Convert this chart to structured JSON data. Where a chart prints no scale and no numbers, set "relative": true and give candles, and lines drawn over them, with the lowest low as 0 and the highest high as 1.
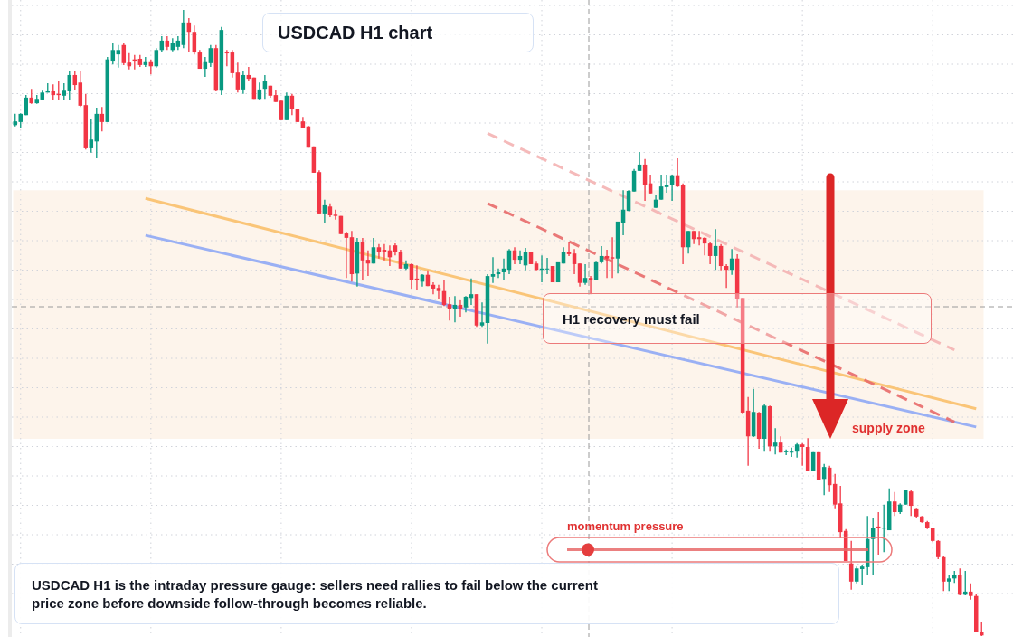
{
  "chart_data": {
    "type": "candlestick",
    "title": "USDCAD H1 chart",
    "relative": true,
    "grid": true,
    "categories": [
      null,
      null,
      null,
      null,
      null,
      null,
      null,
      null,
      null,
      null,
      null,
      null,
      null,
      null,
      null,
      null,
      null,
      null,
      null,
      null,
      null,
      null,
      null,
      null,
      null,
      null,
      null,
      null,
      null,
      null,
      null,
      null,
      null,
      null,
      null,
      null,
      null,
      null,
      null,
      null,
      null,
      null,
      null,
      null,
      null,
      null,
      null,
      null,
      null,
      null,
      null,
      null,
      null,
      null,
      null,
      null,
      null,
      null,
      null,
      null,
      null,
      null,
      null,
      null,
      null,
      null,
      null,
      null,
      null,
      null,
      null,
      null,
      null,
      null,
      null,
      null,
      null,
      null,
      null,
      null,
      null,
      null,
      null,
      null,
      null,
      null,
      null,
      null,
      null,
      null,
      null,
      null,
      null,
      null,
      null,
      null,
      null,
      null,
      null,
      null,
      null,
      null,
      null,
      null,
      null,
      null,
      null,
      null,
      null,
      null,
      null,
      null,
      null,
      null,
      null,
      null,
      null,
      null,
      null,
      null,
      null,
      null,
      null,
      null,
      null,
      null,
      null,
      null,
      null,
      null,
      null,
      null,
      null,
      null,
      null,
      null,
      null,
      null,
      null,
      null,
      null,
      null,
      null,
      null,
      null,
      null,
      null,
      null,
      null,
      null,
      null,
      null,
      null,
      null,
      null,
      null,
      null,
      null,
      null,
      null,
      null,
      null,
      null,
      null,
      null,
      null,
      null,
      null,
      null,
      null,
      null,
      null,
      null,
      null,
      null,
      null,
      null,
      null,
      null
    ],
    "ohlc": [
      [
        0.816,
        0.834,
        0.814,
        0.822
      ],
      [
        0.821,
        0.835,
        0.812,
        0.834
      ],
      [
        0.832,
        0.864,
        0.832,
        0.86
      ],
      [
        0.86,
        0.874,
        0.85,
        0.851
      ],
      [
        0.851,
        0.864,
        0.85,
        0.858
      ],
      [
        0.857,
        0.871,
        0.857,
        0.868
      ],
      [
        0.868,
        0.883,
        0.868,
        0.87
      ],
      [
        0.87,
        0.881,
        0.857,
        0.864
      ],
      [
        0.866,
        0.886,
        0.857,
        0.864
      ],
      [
        0.863,
        0.883,
        0.857,
        0.871
      ],
      [
        0.87,
        0.903,
        0.857,
        0.896
      ],
      [
        0.896,
        0.903,
        0.873,
        0.88
      ],
      [
        0.884,
        0.902,
        0.845,
        0.847
      ],
      [
        0.848,
        0.866,
        0.777,
        0.779
      ],
      [
        0.779,
        0.825,
        0.772,
        0.793
      ],
      [
        0.79,
        0.844,
        0.763,
        0.834
      ],
      [
        0.834,
        0.845,
        0.806,
        0.821
      ],
      [
        0.821,
        0.925,
        0.821,
        0.921
      ],
      [
        0.919,
        0.947,
        0.913,
        0.936
      ],
      [
        0.929,
        0.944,
        0.908,
        0.936
      ],
      [
        0.944,
        0.948,
        0.912,
        0.915
      ],
      [
        0.916,
        0.931,
        0.905,
        0.91
      ],
      [
        0.921,
        0.928,
        0.905,
        0.919
      ],
      [
        0.922,
        0.928,
        0.909,
        0.912
      ],
      [
        0.912,
        0.925,
        0.909,
        0.918
      ],
      [
        0.918,
        0.921,
        0.897,
        0.91
      ],
      [
        0.91,
        0.939,
        0.908,
        0.936
      ],
      [
        0.936,
        0.958,
        0.932,
        0.951
      ],
      [
        0.951,
        0.958,
        0.936,
        0.941
      ],
      [
        0.936,
        0.955,
        0.934,
        0.947
      ],
      [
        0.941,
        0.958,
        0.936,
        0.951
      ],
      [
        0.944,
        1.0,
        0.939,
        0.98
      ],
      [
        0.98,
        0.987,
        0.932,
        0.965
      ],
      [
        0.965,
        0.975,
        0.929,
        0.932
      ],
      [
        0.932,
        0.936,
        0.906,
        0.906
      ],
      [
        0.906,
        0.925,
        0.893,
        0.918
      ],
      [
        0.915,
        0.944,
        0.909,
        0.939
      ],
      [
        0.939,
        0.944,
        0.87,
        0.871
      ],
      [
        0.871,
        0.973,
        0.864,
        0.968
      ],
      [
        0.932,
        0.936,
        0.91,
        0.931
      ],
      [
        0.932,
        0.936,
        0.892,
        0.899
      ],
      [
        0.9,
        0.916,
        0.868,
        0.873
      ],
      [
        0.873,
        0.902,
        0.866,
        0.896
      ],
      [
        0.896,
        0.909,
        0.887,
        0.89
      ],
      [
        0.892,
        0.892,
        0.858,
        0.858
      ],
      [
        0.858,
        0.884,
        0.857,
        0.873
      ],
      [
        0.874,
        0.896,
        0.858,
        0.887
      ],
      [
        0.879,
        0.879,
        0.86,
        0.863
      ],
      [
        0.864,
        0.873,
        0.853,
        0.853
      ],
      [
        0.855,
        0.855,
        0.824,
        0.824
      ],
      [
        0.824,
        0.868,
        0.824,
        0.863
      ],
      [
        0.863,
        0.866,
        0.832,
        0.841
      ],
      [
        0.842,
        0.842,
        0.821,
        0.821
      ],
      [
        0.822,
        0.829,
        0.811,
        0.812
      ],
      [
        0.814,
        0.815,
        0.78,
        0.78
      ],
      [
        0.782,
        0.782,
        0.74,
        0.74
      ],
      [
        0.741,
        0.744,
        0.675,
        0.675
      ],
      [
        0.675,
        0.697,
        0.66,
        0.688
      ],
      [
        0.686,
        0.691,
        0.669,
        0.672
      ],
      [
        0.673,
        0.681,
        0.665,
        0.671
      ],
      [
        0.671,
        0.671,
        0.642,
        0.642
      ],
      [
        0.643,
        0.646,
        0.572,
        0.636
      ],
      [
        0.637,
        0.647,
        0.566,
        0.578
      ],
      [
        0.579,
        0.636,
        0.558,
        0.629
      ],
      [
        0.629,
        0.636,
        0.568,
        0.6
      ],
      [
        0.601,
        0.616,
        0.575,
        0.595
      ],
      [
        0.595,
        0.636,
        0.595,
        0.621
      ],
      [
        0.621,
        0.626,
        0.603,
        0.614
      ],
      [
        0.617,
        0.626,
        0.6,
        0.614
      ],
      [
        0.616,
        0.624,
        0.591,
        0.605
      ],
      [
        0.624,
        0.627,
        0.608,
        0.613
      ],
      [
        0.614,
        0.617,
        0.587,
        0.587
      ],
      [
        0.587,
        0.6,
        0.585,
        0.594
      ],
      [
        0.594,
        0.595,
        0.555,
        0.568
      ],
      [
        0.571,
        0.592,
        0.553,
        0.568
      ],
      [
        0.566,
        0.578,
        0.558,
        0.577
      ],
      [
        0.577,
        0.584,
        0.559,
        0.559
      ],
      [
        0.561,
        0.565,
        0.546,
        0.555
      ],
      [
        0.556,
        0.561,
        0.539,
        0.551
      ],
      [
        0.551,
        0.569,
        0.527,
        0.529
      ],
      [
        0.53,
        0.542,
        0.504,
        0.523
      ],
      [
        0.523,
        0.543,
        0.501,
        0.529
      ],
      [
        0.529,
        0.536,
        0.51,
        0.523
      ],
      [
        0.525,
        0.543,
        0.517,
        0.542
      ],
      [
        0.54,
        0.571,
        0.529,
        0.546
      ],
      [
        0.546,
        0.546,
        0.494,
        0.496
      ],
      [
        0.496,
        0.533,
        0.494,
        0.501
      ],
      [
        0.5,
        0.578,
        0.467,
        0.575
      ],
      [
        0.574,
        0.605,
        0.564,
        0.578
      ],
      [
        0.578,
        0.587,
        0.572,
        0.581
      ],
      [
        0.581,
        0.603,
        0.568,
        0.587
      ],
      [
        0.585,
        0.618,
        0.578,
        0.616
      ],
      [
        0.616,
        0.621,
        0.594,
        0.601
      ],
      [
        0.601,
        0.616,
        0.594,
        0.607
      ],
      [
        0.592,
        0.62,
        0.584,
        0.613
      ],
      [
        0.613,
        0.613,
        0.594,
        0.594
      ],
      [
        0.595,
        0.598,
        0.584,
        0.585
      ],
      [
        0.585,
        0.608,
        0.565,
        0.587
      ],
      [
        0.587,
        0.604,
        0.578,
        0.587
      ],
      [
        0.591,
        0.591,
        0.565,
        0.565
      ],
      [
        0.565,
        0.597,
        0.565,
        0.597
      ],
      [
        0.595,
        0.621,
        0.595,
        0.614
      ],
      [
        0.614,
        0.629,
        0.607,
        0.61
      ],
      [
        0.611,
        0.618,
        0.578,
        0.594
      ],
      [
        0.595,
        0.595,
        0.558,
        0.564
      ],
      [
        0.564,
        0.594,
        0.561,
        0.572
      ],
      [
        0.572,
        0.575,
        0.546,
        0.569
      ],
      [
        0.569,
        0.598,
        0.569,
        0.597
      ],
      [
        0.597,
        0.623,
        0.595,
        0.607
      ],
      [
        0.607,
        0.617,
        0.572,
        0.603
      ],
      [
        0.605,
        0.637,
        0.572,
        0.603
      ],
      [
        0.603,
        0.662,
        0.579,
        0.662
      ],
      [
        0.659,
        0.712,
        0.64,
        0.681
      ],
      [
        0.679,
        0.712,
        0.679,
        0.711
      ],
      [
        0.71,
        0.746,
        0.71,
        0.743
      ],
      [
        0.743,
        0.773,
        0.743,
        0.753
      ],
      [
        0.753,
        0.762,
        0.695,
        0.72
      ],
      [
        0.723,
        0.737,
        0.707,
        0.707
      ],
      [
        0.684,
        0.704,
        0.684,
        0.697
      ],
      [
        0.697,
        0.737,
        0.697,
        0.718
      ],
      [
        0.717,
        0.737,
        0.708,
        0.721
      ],
      [
        0.72,
        0.737,
        0.695,
        0.736
      ],
      [
        0.736,
        0.763,
        0.717,
        0.718
      ],
      [
        0.72,
        0.723,
        0.594,
        0.621
      ],
      [
        0.621,
        0.647,
        0.611,
        0.647
      ],
      [
        0.647,
        0.647,
        0.626,
        0.634
      ],
      [
        0.637,
        0.647,
        0.624,
        0.634
      ],
      [
        0.636,
        0.637,
        0.608,
        0.627
      ],
      [
        0.627,
        0.629,
        0.594,
        0.607
      ],
      [
        0.607,
        0.65,
        0.585,
        0.623
      ],
      [
        0.623,
        0.626,
        0.584,
        0.591
      ],
      [
        0.591,
        0.594,
        0.556,
        0.585
      ],
      [
        0.585,
        0.618,
        0.577,
        0.603
      ],
      [
        0.603,
        0.61,
        0.525,
        0.539
      ],
      [
        0.54,
        0.54,
        0.355,
        0.357
      ],
      [
        0.36,
        0.382,
        0.272,
        0.319
      ],
      [
        0.319,
        0.395,
        0.318,
        0.358
      ],
      [
        0.357,
        0.358,
        0.299,
        0.315
      ],
      [
        0.315,
        0.371,
        0.296,
        0.368
      ],
      [
        0.367,
        0.368,
        0.296,
        0.303
      ],
      [
        0.303,
        0.332,
        0.29,
        0.309
      ],
      [
        0.309,
        0.319,
        0.293,
        0.293
      ],
      [
        0.295,
        0.298,
        0.289,
        0.296
      ],
      [
        0.293,
        0.301,
        0.286,
        0.296
      ],
      [
        0.296,
        0.308,
        0.285,
        0.306
      ],
      [
        0.306,
        0.308,
        0.272,
        0.302
      ],
      [
        0.302,
        0.316,
        0.263,
        0.264
      ],
      [
        0.263,
        0.295,
        0.263,
        0.295
      ],
      [
        0.295,
        0.295,
        0.25,
        0.25
      ],
      [
        0.251,
        0.275,
        0.225,
        0.27
      ],
      [
        0.269,
        0.272,
        0.23,
        0.241
      ],
      [
        0.243,
        0.259,
        0.204,
        0.21
      ],
      [
        0.212,
        0.24,
        0.156,
        0.166
      ],
      [
        0.168,
        0.171,
        0.12,
        0.12
      ],
      [
        0.116,
        0.152,
        0.074,
        0.087
      ],
      [
        0.087,
        0.111,
        0.084,
        0.108
      ],
      [
        0.107,
        0.114,
        0.081,
        0.111
      ],
      [
        0.11,
        0.192,
        0.098,
        0.155
      ],
      [
        0.155,
        0.188,
        0.097,
        0.173
      ],
      [
        0.175,
        0.198,
        0.13,
        0.172
      ],
      [
        0.172,
        0.21,
        0.134,
        0.173
      ],
      [
        0.169,
        0.236,
        0.169,
        0.215
      ],
      [
        0.215,
        0.23,
        0.192,
        0.198
      ],
      [
        0.198,
        0.212,
        0.195,
        0.21
      ],
      [
        0.21,
        0.234,
        0.21,
        0.233
      ],
      [
        0.231,
        0.233,
        0.192,
        0.208
      ],
      [
        0.204,
        0.205,
        0.189,
        0.191
      ],
      [
        0.191,
        0.192,
        0.181,
        0.182
      ],
      [
        0.182,
        0.184,
        0.171,
        0.172
      ],
      [
        0.172,
        0.173,
        0.15,
        0.152
      ],
      [
        0.152,
        0.153,
        0.123,
        0.126
      ],
      [
        0.126,
        0.127,
        0.072,
        0.087
      ],
      [
        0.087,
        0.098,
        0.072,
        0.092
      ],
      [
        0.092,
        0.104,
        0.085,
        0.098
      ],
      [
        0.098,
        0.108,
        0.065,
        0.066
      ],
      [
        0.066,
        0.104,
        0.065,
        0.071
      ],
      [
        0.071,
        0.084,
        0.058,
        0.064
      ],
      [
        0.064,
        0.068,
        0.006,
        0.007
      ],
      [
        0.007,
        0.023,
        0,
        0.001
      ]
    ],
    "series": [
      {
        "type": "line",
        "color": "#f9c06b",
        "line_style": "solid",
        "values": [
          null,
          null,
          null,
          null,
          null,
          null,
          null,
          null,
          null,
          null,
          null,
          null,
          null,
          null,
          null,
          null,
          null,
          null,
          null,
          null,
          null,
          null,
          null,
          null,
          0.699,
          null,
          null,
          null,
          null,
          null,
          null,
          null,
          null,
          null,
          null,
          null,
          null,
          null,
          null,
          null,
          null,
          null,
          null,
          null,
          null,
          null,
          null,
          null,
          null,
          null,
          null,
          null,
          null,
          null,
          null,
          null,
          null,
          null,
          null,
          null,
          null,
          null,
          null,
          null,
          null,
          null,
          null,
          null,
          null,
          null,
          null,
          null,
          null,
          null,
          null,
          null,
          null,
          null,
          null,
          null,
          null,
          null,
          null,
          null,
          null,
          null,
          null,
          null,
          null,
          null,
          null,
          null,
          null,
          null,
          null,
          null,
          null,
          null,
          null,
          null,
          null,
          null,
          null,
          null,
          null,
          null,
          null,
          null,
          null,
          null,
          null,
          null,
          null,
          null,
          null,
          null,
          null,
          null,
          null,
          null,
          null,
          null,
          null,
          null,
          null,
          null,
          null,
          null,
          null,
          null,
          null,
          null,
          null,
          null,
          null,
          null,
          null,
          null,
          null,
          null,
          null,
          null,
          null,
          null,
          null,
          null,
          null,
          null,
          null,
          null,
          null,
          null,
          null,
          null,
          null,
          null,
          null,
          null,
          null,
          null,
          null,
          null,
          null,
          null,
          null,
          null,
          null,
          null,
          null,
          null,
          null,
          null,
          null,
          null,
          null,
          null,
          null,
          0.363,
          null
        ]
      },
      {
        "type": "line",
        "color": "#8fa8f5",
        "line_style": "solid",
        "values": [
          null,
          null,
          null,
          null,
          null,
          null,
          null,
          null,
          null,
          null,
          null,
          null,
          null,
          null,
          null,
          null,
          null,
          null,
          null,
          null,
          null,
          null,
          null,
          null,
          0.64,
          null,
          null,
          null,
          null,
          null,
          null,
          null,
          null,
          null,
          null,
          null,
          null,
          null,
          null,
          null,
          null,
          null,
          null,
          null,
          null,
          null,
          null,
          null,
          null,
          null,
          null,
          null,
          null,
          null,
          null,
          null,
          null,
          null,
          null,
          null,
          null,
          null,
          null,
          null,
          null,
          null,
          null,
          null,
          null,
          null,
          null,
          null,
          null,
          null,
          null,
          null,
          null,
          null,
          null,
          null,
          null,
          null,
          null,
          null,
          null,
          null,
          null,
          null,
          null,
          null,
          null,
          null,
          null,
          null,
          null,
          null,
          null,
          null,
          null,
          null,
          null,
          null,
          null,
          null,
          null,
          null,
          null,
          null,
          null,
          null,
          null,
          null,
          null,
          null,
          null,
          null,
          null,
          null,
          null,
          null,
          null,
          null,
          null,
          null,
          null,
          null,
          null,
          null,
          null,
          null,
          null,
          null,
          null,
          null,
          null,
          null,
          null,
          null,
          null,
          null,
          null,
          null,
          null,
          null,
          null,
          null,
          null,
          null,
          null,
          null,
          null,
          null,
          null,
          null,
          null,
          null,
          null,
          null,
          null,
          null,
          null,
          null,
          null,
          null,
          null,
          null,
          null,
          null,
          null,
          null,
          null,
          null,
          null,
          null,
          null,
          null,
          null,
          0.334,
          null
        ]
      },
      {
        "type": "line",
        "color": "#e86a6a",
        "line_style": "dashed",
        "values": [
          null,
          null,
          null,
          null,
          null,
          null,
          null,
          null,
          null,
          null,
          null,
          null,
          null,
          null,
          null,
          null,
          null,
          null,
          null,
          null,
          null,
          null,
          null,
          null,
          null,
          null,
          null,
          null,
          null,
          null,
          null,
          null,
          null,
          null,
          null,
          null,
          null,
          null,
          null,
          null,
          null,
          null,
          null,
          null,
          null,
          null,
          null,
          null,
          null,
          null,
          null,
          null,
          null,
          null,
          null,
          null,
          null,
          null,
          null,
          null,
          null,
          null,
          null,
          null,
          null,
          null,
          null,
          null,
          null,
          null,
          null,
          null,
          null,
          null,
          null,
          null,
          null,
          null,
          null,
          null,
          null,
          null,
          null,
          null,
          null,
          null,
          null,
          0.691,
          null,
          null,
          null,
          null,
          null,
          null,
          null,
          null,
          null,
          null,
          null,
          null,
          null,
          null,
          null,
          null,
          null,
          null,
          null,
          null,
          null,
          null,
          null,
          null,
          null,
          null,
          null,
          null,
          null,
          null,
          null,
          null,
          null,
          null,
          null,
          null,
          null,
          null,
          null,
          null,
          null,
          null,
          null,
          null,
          null,
          null,
          null,
          null,
          null,
          null,
          null,
          null,
          null,
          null,
          null,
          null,
          null,
          null,
          null,
          null,
          null,
          null,
          null,
          null,
          null,
          null,
          null,
          null,
          null,
          null,
          null,
          null,
          null,
          null,
          null,
          null,
          null,
          null,
          null,
          null,
          null,
          null,
          null,
          null,
          null,
          0.342,
          null,
          null,
          null,
          null,
          null
        ]
      },
      {
        "type": "line",
        "color": "#f4b3b3",
        "line_style": "dashed",
        "values": [
          null,
          null,
          null,
          null,
          null,
          null,
          null,
          null,
          null,
          null,
          null,
          null,
          null,
          null,
          null,
          null,
          null,
          null,
          null,
          null,
          null,
          null,
          null,
          null,
          null,
          null,
          null,
          null,
          null,
          null,
          null,
          null,
          null,
          null,
          null,
          null,
          null,
          null,
          null,
          null,
          null,
          null,
          null,
          null,
          null,
          null,
          null,
          null,
          null,
          null,
          null,
          null,
          null,
          null,
          null,
          null,
          null,
          null,
          null,
          null,
          null,
          null,
          null,
          null,
          null,
          null,
          null,
          null,
          null,
          null,
          null,
          null,
          null,
          null,
          null,
          null,
          null,
          null,
          null,
          null,
          null,
          null,
          null,
          null,
          null,
          null,
          null,
          0.803,
          null,
          null,
          null,
          null,
          null,
          null,
          null,
          null,
          null,
          null,
          null,
          null,
          null,
          null,
          null,
          null,
          null,
          null,
          null,
          null,
          null,
          null,
          null,
          null,
          null,
          null,
          null,
          null,
          null,
          null,
          null,
          null,
          null,
          null,
          null,
          null,
          null,
          null,
          null,
          null,
          null,
          null,
          null,
          null,
          null,
          null,
          null,
          null,
          null,
          null,
          null,
          null,
          null,
          null,
          null,
          null,
          null,
          null,
          null,
          null,
          null,
          null,
          null,
          null,
          null,
          null,
          null,
          null,
          null,
          null,
          null,
          null,
          null,
          null,
          null,
          null,
          null,
          null,
          null,
          null,
          null,
          null,
          null,
          null,
          null,
          0.457,
          null,
          null,
          null,
          null,
          null
        ]
      }
    ],
    "ref_lines": [
      {
        "axis": "y",
        "value": 0.526,
        "color": "#9a9a9a",
        "line_style": "dashed"
      }
    ],
    "bands": [
      {
        "axis": "y",
        "from": 0.315,
        "to": 0.712,
        "label": "supply zone",
        "color": "#fdf1e6"
      }
    ],
    "annotations": [
      "H1 recovery must fail",
      "momentum pressure",
      "USDCAD H1 is the intraday pressure gauge: sellers need rallies to fail below the current price zone before downside follow-through becomes reliable."
    ]
  }
}
